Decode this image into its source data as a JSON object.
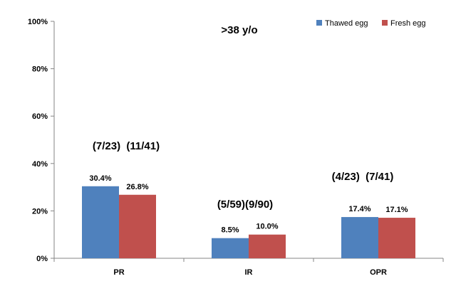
{
  "chart_data": {
    "type": "bar",
    "title": ">38 y/o",
    "categories": [
      "PR",
      "IR",
      "OPR"
    ],
    "series": [
      {
        "name": "Thawed egg",
        "color": "#4F81BD",
        "values": [
          30.4,
          8.5,
          17.4
        ],
        "labels": [
          "30.4%",
          "8.5%",
          "17.4%"
        ]
      },
      {
        "name": "Fresh egg",
        "color": "#C0504D",
        "values": [
          26.8,
          10.0,
          17.1
        ],
        "labels": [
          "26.8%",
          "10.0%",
          "17.1%"
        ]
      }
    ],
    "annotations": [
      "(7/23)  (11/41)",
      "(5/59)(9/90)",
      "(4/23)  (7/41)"
    ],
    "ylim": [
      0,
      100
    ],
    "yticks": [
      "0%",
      "20%",
      "40%",
      "60%",
      "80%",
      "100%"
    ],
    "ytick_values": [
      0,
      20,
      40,
      60,
      80,
      100
    ],
    "grid": false,
    "legend": "top-right"
  }
}
